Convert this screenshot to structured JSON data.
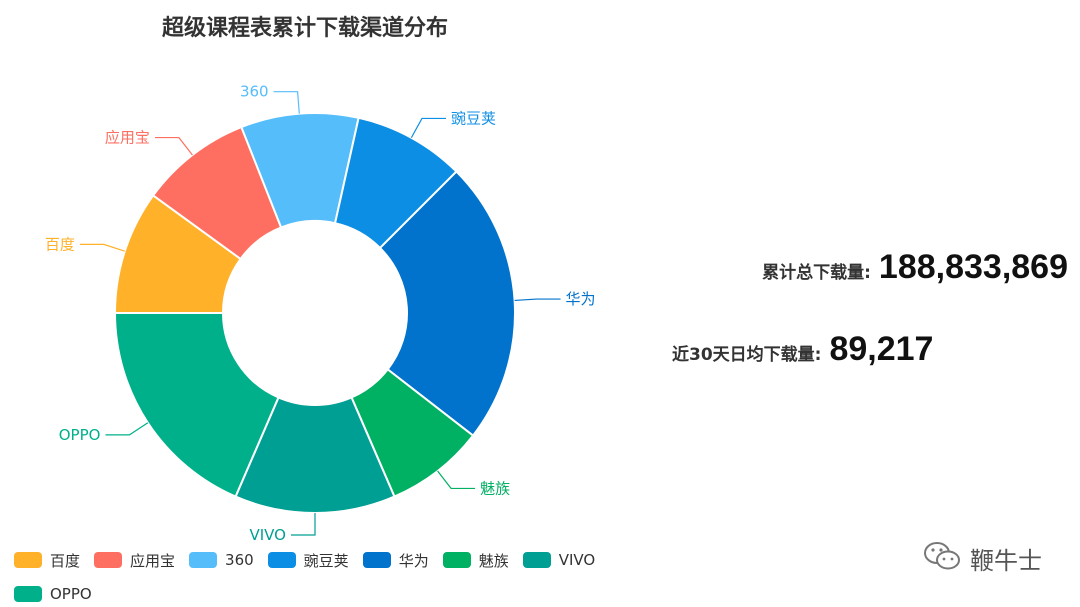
{
  "chart_data": {
    "type": "pie",
    "title": "超级课程表累计下载渠道分布",
    "categories": [
      "百度",
      "应用宝",
      "360",
      "豌豆荚",
      "华为",
      "魅族",
      "VIVO",
      "OPPO"
    ],
    "values": [
      10,
      9,
      9.5,
      9,
      23,
      8,
      13,
      18.5
    ],
    "colors": [
      "#ffb12a",
      "#ff6f61",
      "#56bdfb",
      "#0d8ee5",
      "#0173cc",
      "#00b063",
      "#009f94",
      "#00b08a"
    ],
    "donut": true,
    "legend_position": "bottom-left"
  },
  "stats": {
    "total_label": "累计总下载量:",
    "total_value": "188,833,869",
    "avg_label": "近30天日均下载量:",
    "avg_value": "89,217"
  },
  "watermark": {
    "icon": "wechat-icon",
    "text": "鞭牛士"
  }
}
